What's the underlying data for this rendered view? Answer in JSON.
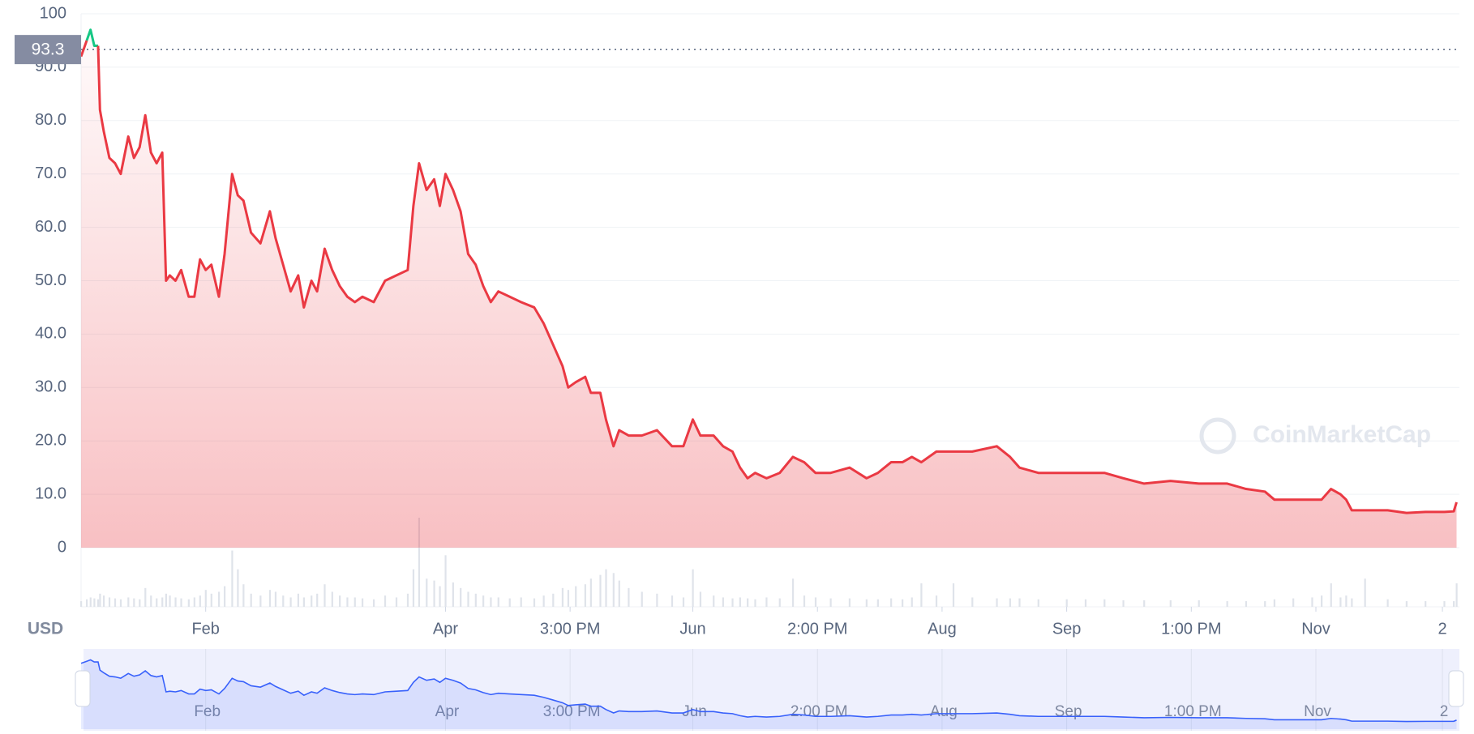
{
  "chart_data": {
    "type": "line",
    "currency": "USD",
    "watermark": "CoinMarketCap",
    "reference": 93.3,
    "color": "#ea3943",
    "up_color": "#16c784",
    "navigator_color": "#3861fb",
    "grid": true,
    "ylim": [
      0,
      100
    ],
    "yticks": [
      0,
      {
        "value": 10,
        "label": "10.0"
      },
      {
        "value": 20,
        "label": "20.0"
      },
      {
        "value": 30,
        "label": "30.0"
      },
      {
        "value": 40,
        "label": "40.0"
      },
      {
        "value": 50,
        "label": "50.0"
      },
      {
        "value": 60,
        "label": "60.0"
      },
      {
        "value": 70,
        "label": "70.0"
      },
      {
        "value": 80,
        "label": "80.0"
      },
      {
        "value": 90,
        "label": "90.0"
      },
      100
    ],
    "xlim": [
      0,
      365
    ],
    "xticks": [
      {
        "value": 33,
        "label": "Feb"
      },
      {
        "value": 96.5,
        "label": "Apr"
      },
      {
        "value": 129.5,
        "label": "3:00 PM"
      },
      {
        "value": 162,
        "label": "Jun"
      },
      {
        "value": 195,
        "label": "2:00 PM"
      },
      {
        "value": 228,
        "label": "Aug"
      },
      {
        "value": 261,
        "label": "Sep"
      },
      {
        "value": 294,
        "label": "1:00 PM"
      },
      {
        "value": 327,
        "label": "Nov"
      },
      {
        "value": 360.5,
        "label": "2"
      }
    ],
    "x": [
      0,
      1.5,
      2.5,
      3.5,
      4.5,
      5,
      6,
      7.5,
      9,
      10.5,
      12.5,
      14,
      15.5,
      17,
      18.5,
      20,
      21.5,
      22.5,
      23.5,
      25,
      26.5,
      28.5,
      30,
      31.5,
      33,
      34.5,
      36.5,
      38,
      40,
      41.5,
      43,
      45,
      47.5,
      50,
      51.5,
      53.5,
      55.5,
      57.5,
      59,
      61,
      62.5,
      64.5,
      66.5,
      68.5,
      70.5,
      72.5,
      74.5,
      77.5,
      80.5,
      83.5,
      86.5,
      88,
      89.5,
      91.5,
      93.5,
      95,
      96.5,
      98.5,
      100.5,
      102.5,
      104.5,
      106.5,
      108.5,
      110.5,
      113.5,
      116.5,
      120,
      122.5,
      125,
      127.5,
      129,
      131,
      133.5,
      135,
      137.5,
      139,
      141,
      142.5,
      145,
      148.5,
      152.5,
      156.5,
      159.5,
      162,
      164,
      167.5,
      170,
      172.5,
      174.5,
      176.5,
      178.5,
      181.5,
      185,
      188.5,
      191.5,
      194.5,
      198.5,
      203.5,
      208,
      211,
      214.5,
      217.5,
      220,
      222.5,
      226.5,
      231,
      236,
      242.5,
      246,
      248.5,
      253.5,
      261,
      266,
      271,
      276,
      281.5,
      288.5,
      296,
      303.5,
      308.5,
      313.5,
      316,
      321,
      326,
      328.5,
      331,
      333.5,
      335,
      336.5,
      340,
      346,
      351,
      356,
      361,
      363.5,
      364.25
    ],
    "values": [
      92,
      95,
      97,
      94,
      94,
      82,
      78,
      73,
      72,
      70,
      77,
      73,
      75,
      81,
      74,
      72,
      74,
      50,
      51,
      50,
      52,
      47,
      47,
      54,
      52,
      53,
      47,
      55,
      70,
      66,
      65,
      59,
      57,
      63,
      58,
      53,
      48,
      51,
      45,
      50,
      48,
      56,
      52,
      49,
      47,
      46,
      47,
      46,
      50,
      51,
      52,
      64,
      72,
      67,
      69,
      64,
      70,
      67,
      63,
      55,
      53,
      49,
      46,
      48,
      47,
      46,
      45,
      42,
      38,
      34,
      30,
      31,
      32,
      29,
      29,
      24,
      19,
      22,
      21,
      21,
      22,
      19,
      19,
      24,
      21,
      21,
      19,
      18,
      15,
      13,
      14,
      13,
      14,
      17,
      16,
      14,
      14,
      15,
      13,
      14,
      16,
      16,
      17,
      16,
      18,
      18,
      18,
      19,
      17,
      15,
      14,
      14,
      14,
      14,
      13,
      12,
      12.5,
      12,
      12,
      11,
      10.5,
      9,
      9,
      9,
      9,
      11,
      10,
      9,
      7,
      7,
      7,
      6.5,
      6.7,
      6.7,
      6.8,
      8.5
    ],
    "volume": [
      6,
      8,
      10,
      9,
      8,
      14,
      12,
      10,
      9,
      8,
      10,
      9,
      8,
      20,
      12,
      9,
      10,
      14,
      12,
      10,
      9,
      8,
      10,
      12,
      18,
      14,
      16,
      22,
      60,
      40,
      24,
      14,
      12,
      18,
      16,
      12,
      10,
      14,
      10,
      12,
      14,
      24,
      16,
      12,
      10,
      10,
      9,
      8,
      12,
      10,
      14,
      40,
      95,
      30,
      28,
      22,
      55,
      26,
      20,
      16,
      14,
      12,
      10,
      10,
      9,
      10,
      9,
      12,
      14,
      20,
      18,
      22,
      24,
      30,
      34,
      40,
      36,
      28,
      20,
      16,
      14,
      12,
      10,
      40,
      16,
      12,
      10,
      9,
      10,
      9,
      8,
      10,
      9,
      30,
      12,
      10,
      9,
      9,
      8,
      8,
      9,
      8,
      10,
      25,
      12,
      25,
      10,
      9,
      9,
      9,
      8,
      8,
      8,
      8,
      7,
      7,
      7,
      7,
      6,
      6,
      6,
      8,
      9,
      10,
      12,
      25,
      10,
      12,
      9,
      30,
      8,
      6,
      6,
      6,
      6,
      25
    ]
  }
}
